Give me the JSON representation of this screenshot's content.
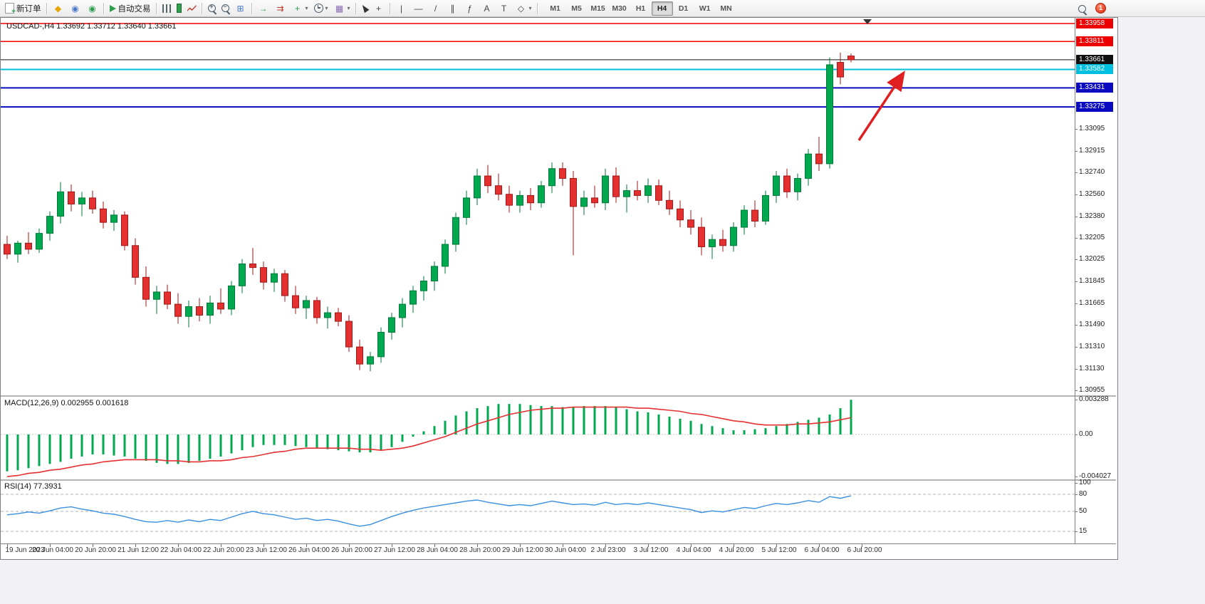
{
  "toolbar": {
    "new_order": "新订单",
    "autotrading": "自动交易",
    "timeframes": [
      "M1",
      "M5",
      "M15",
      "M30",
      "H1",
      "H4",
      "D1",
      "W1",
      "MN"
    ],
    "active_timeframe": "H4",
    "notification_count": "1",
    "groups": [
      {
        "items": [
          {
            "n": "new-order-button",
            "cls": "doc",
            "l": "新订单"
          }
        ]
      },
      {
        "items": [
          {
            "n": "mql5-icon",
            "g": "◆",
            "c": "#e6a400"
          },
          {
            "n": "community-icon",
            "g": "◉",
            "c": "#4a78c8"
          },
          {
            "n": "market-icon",
            "g": "◉",
            "c": "#2f9e4f"
          }
        ]
      },
      {
        "items": [
          {
            "n": "autotrading-button",
            "cls": "play",
            "l": "自动交易"
          }
        ]
      },
      {
        "items": [
          {
            "n": "bar-chart-icon",
            "cls": "bars"
          },
          {
            "n": "candlestick-chart-icon",
            "cls": "candle"
          },
          {
            "n": "line-chart-icon",
            "cls": "linechart"
          }
        ]
      },
      {
        "items": [
          {
            "n": "zoom-in-icon",
            "cls": "magplus"
          },
          {
            "n": "zoom-out-icon",
            "cls": "magminus"
          },
          {
            "n": "tile-windows-icon",
            "g": "⊞",
            "c": "#4a78c8"
          }
        ]
      },
      {
        "items": [
          {
            "n": "auto-scroll-icon",
            "g": "→",
            "c": "#2f9e4f"
          },
          {
            "n": "chart-shift-icon",
            "g": "⇉",
            "c": "#c0392b"
          },
          {
            "n": "indicators-button",
            "g": "+",
            "c": "#2f9e4f",
            "caret": true
          },
          {
            "n": "periods-button",
            "cls": "clock",
            "caret": true
          },
          {
            "n": "templates-button",
            "g": "▦",
            "c": "#8a6ab0",
            "caret": true
          }
        ]
      },
      {
        "items": [
          {
            "n": "cursor-icon",
            "cls": "cursor"
          },
          {
            "n": "crosshair-icon",
            "g": "+",
            "c": "#444"
          }
        ]
      },
      {
        "items": [
          {
            "n": "vertical-line-icon",
            "g": "|",
            "c": "#444"
          },
          {
            "n": "horizontal-line-icon",
            "g": "—",
            "c": "#444"
          },
          {
            "n": "trendline-icon",
            "g": "/",
            "c": "#444"
          },
          {
            "n": "channel-icon",
            "g": "∥",
            "c": "#444"
          },
          {
            "n": "fibonacci-icon",
            "g": "ƒ",
            "c": "#444"
          },
          {
            "n": "text-icon",
            "g": "A",
            "c": "#444"
          },
          {
            "n": "label-icon",
            "g": "T",
            "c": "#444"
          },
          {
            "n": "shapes-button",
            "g": "◇",
            "c": "#444",
            "caret": true
          }
        ]
      }
    ]
  },
  "window": {
    "symbol_title": "USDCAD-,H4 1.33692 1.33712 1.33640 1.33661"
  },
  "price_scale": {
    "levels": [
      {
        "label": "1.33958",
        "price": 1.33958,
        "color": "#ee0000",
        "role": "resistance",
        "width": 1.5
      },
      {
        "label": "1.33811",
        "price": 1.33811,
        "color": "#ee0000",
        "role": "resistance",
        "width": 1.5
      },
      {
        "label": "1.33661",
        "price": 1.33661,
        "color": "#101010",
        "role": "current-price",
        "width": 1
      },
      {
        "label": "1.33582",
        "price": 1.33582,
        "color": "#00c0e0",
        "role": "support",
        "width": 2
      },
      {
        "label": "1.33431",
        "price": 1.33431,
        "color": "#0a0ac0",
        "role": "support",
        "width": 2
      },
      {
        "label": "1.33275",
        "price": 1.33275,
        "color": "#0a0ac0",
        "role": "support",
        "width": 2
      }
    ],
    "ticks": [
      {
        "label": "1.33095",
        "price": 1.33095
      },
      {
        "label": "1.32915",
        "price": 1.32915
      },
      {
        "label": "1.32740",
        "price": 1.3274
      },
      {
        "label": "1.32560",
        "price": 1.3256
      },
      {
        "label": "1.32380",
        "price": 1.3238
      },
      {
        "label": "1.32205",
        "price": 1.32205
      },
      {
        "label": "1.32025",
        "price": 1.32025
      },
      {
        "label": "1.31845",
        "price": 1.31845
      },
      {
        "label": "1.31665",
        "price": 1.31665
      },
      {
        "label": "1.31490",
        "price": 1.3149
      },
      {
        "label": "1.31310",
        "price": 1.3131
      },
      {
        "label": "1.31130",
        "price": 1.3113
      },
      {
        "label": "1.30955",
        "price": 1.30955
      }
    ]
  },
  "chart_data": {
    "type": "candlestick",
    "symbol": "USDCAD",
    "timeframe": "H4",
    "current": {
      "open": "1.33692",
      "high": "1.33712",
      "low": "1.33640",
      "close": "1.33661"
    },
    "up_color": "#00a84f",
    "down_color": "#e53030",
    "ohlc": [
      [
        1.3215,
        1.3222,
        1.3203,
        1.3207
      ],
      [
        1.3207,
        1.3218,
        1.32,
        1.3216
      ],
      [
        1.3216,
        1.3225,
        1.3207,
        1.3211
      ],
      [
        1.3211,
        1.3228,
        1.3208,
        1.3224
      ],
      [
        1.3224,
        1.3242,
        1.3218,
        1.3238
      ],
      [
        1.3238,
        1.3266,
        1.3232,
        1.3258
      ],
      [
        1.3258,
        1.3264,
        1.3242,
        1.3248
      ],
      [
        1.3248,
        1.3258,
        1.3238,
        1.3253
      ],
      [
        1.3253,
        1.3259,
        1.324,
        1.3244
      ],
      [
        1.3244,
        1.325,
        1.3228,
        1.3233
      ],
      [
        1.3233,
        1.3243,
        1.3226,
        1.3239
      ],
      [
        1.3239,
        1.3242,
        1.321,
        1.3214
      ],
      [
        1.3214,
        1.322,
        1.3182,
        1.3188
      ],
      [
        1.3188,
        1.3197,
        1.3164,
        1.317
      ],
      [
        1.317,
        1.3181,
        1.3158,
        1.3176
      ],
      [
        1.3176,
        1.3182,
        1.3162,
        1.3166
      ],
      [
        1.3166,
        1.3175,
        1.315,
        1.3156
      ],
      [
        1.3156,
        1.3169,
        1.3147,
        1.3164
      ],
      [
        1.3164,
        1.3171,
        1.3152,
        1.3157
      ],
      [
        1.3157,
        1.3173,
        1.315,
        1.3167
      ],
      [
        1.3167,
        1.3179,
        1.3158,
        1.3162
      ],
      [
        1.3162,
        1.3185,
        1.3157,
        1.3181
      ],
      [
        1.3181,
        1.3203,
        1.3175,
        1.3199
      ],
      [
        1.3199,
        1.3212,
        1.319,
        1.3196
      ],
      [
        1.3196,
        1.3201,
        1.3178,
        1.3184
      ],
      [
        1.3184,
        1.3195,
        1.3176,
        1.3191
      ],
      [
        1.3191,
        1.3194,
        1.3168,
        1.3173
      ],
      [
        1.3173,
        1.3181,
        1.3158,
        1.3163
      ],
      [
        1.3163,
        1.3173,
        1.3154,
        1.3169
      ],
      [
        1.3169,
        1.3172,
        1.315,
        1.3155
      ],
      [
        1.3155,
        1.3164,
        1.3146,
        1.3159
      ],
      [
        1.3159,
        1.3163,
        1.3148,
        1.3152
      ],
      [
        1.3152,
        1.3157,
        1.3127,
        1.3131
      ],
      [
        1.3131,
        1.3137,
        1.3112,
        1.3117
      ],
      [
        1.3117,
        1.3127,
        1.3111,
        1.3123
      ],
      [
        1.3123,
        1.3147,
        1.3118,
        1.3143
      ],
      [
        1.3143,
        1.3159,
        1.3137,
        1.3155
      ],
      [
        1.3155,
        1.3171,
        1.3147,
        1.3166
      ],
      [
        1.3166,
        1.3181,
        1.3159,
        1.3177
      ],
      [
        1.3177,
        1.3189,
        1.3169,
        1.3185
      ],
      [
        1.3185,
        1.3201,
        1.3177,
        1.3197
      ],
      [
        1.3197,
        1.3219,
        1.3191,
        1.3215
      ],
      [
        1.3215,
        1.3241,
        1.3209,
        1.3237
      ],
      [
        1.3237,
        1.3259,
        1.3231,
        1.3253
      ],
      [
        1.3253,
        1.3277,
        1.3247,
        1.3271
      ],
      [
        1.3271,
        1.328,
        1.3257,
        1.3263
      ],
      [
        1.3263,
        1.3273,
        1.3251,
        1.3256
      ],
      [
        1.3256,
        1.3263,
        1.3241,
        1.3247
      ],
      [
        1.3247,
        1.3259,
        1.3241,
        1.3255
      ],
      [
        1.3255,
        1.3261,
        1.3243,
        1.3249
      ],
      [
        1.3249,
        1.3267,
        1.3245,
        1.3263
      ],
      [
        1.3263,
        1.3282,
        1.3257,
        1.3277
      ],
      [
        1.3277,
        1.3282,
        1.3263,
        1.3269
      ],
      [
        1.3269,
        1.3275,
        1.3206,
        1.3246
      ],
      [
        1.3246,
        1.3259,
        1.3239,
        1.3253
      ],
      [
        1.3253,
        1.3263,
        1.3245,
        1.3249
      ],
      [
        1.3249,
        1.3277,
        1.3243,
        1.3271
      ],
      [
        1.3271,
        1.3278,
        1.3249,
        1.3254
      ],
      [
        1.3254,
        1.3264,
        1.3241,
        1.3259
      ],
      [
        1.3259,
        1.3267,
        1.3251,
        1.3255
      ],
      [
        1.3255,
        1.3269,
        1.3249,
        1.3263
      ],
      [
        1.3263,
        1.3268,
        1.3247,
        1.3251
      ],
      [
        1.3251,
        1.3259,
        1.3239,
        1.3244
      ],
      [
        1.3244,
        1.3251,
        1.3229,
        1.3235
      ],
      [
        1.3235,
        1.3243,
        1.3223,
        1.3229
      ],
      [
        1.3229,
        1.3237,
        1.3206,
        1.3213
      ],
      [
        1.3213,
        1.3223,
        1.3203,
        1.3219
      ],
      [
        1.3219,
        1.3227,
        1.3209,
        1.3214
      ],
      [
        1.3214,
        1.3233,
        1.3209,
        1.3229
      ],
      [
        1.3229,
        1.3247,
        1.3223,
        1.3243
      ],
      [
        1.3243,
        1.3251,
        1.3229,
        1.3234
      ],
      [
        1.3234,
        1.3259,
        1.3231,
        1.3255
      ],
      [
        1.3255,
        1.3275,
        1.3249,
        1.3271
      ],
      [
        1.3271,
        1.3277,
        1.3253,
        1.3258
      ],
      [
        1.3258,
        1.3273,
        1.3251,
        1.3269
      ],
      [
        1.3269,
        1.3293,
        1.3263,
        1.3289
      ],
      [
        1.3289,
        1.3303,
        1.3275,
        1.3281
      ],
      [
        1.3281,
        1.3368,
        1.3277,
        1.3362
      ],
      [
        1.3364,
        1.3372,
        1.3346,
        1.3352
      ],
      [
        1.33692,
        1.33712,
        1.3364,
        1.33661
      ]
    ]
  },
  "macd": {
    "name": "MACD(12,26,9)",
    "value_main": "0.002955",
    "value_signal": "0.001618",
    "scale": {
      "max": "0.003288",
      "zero": "0.00",
      "min": "-0.004027"
    },
    "colors": {
      "histogram": "#00a84f",
      "signal": "#e53030"
    },
    "histogram": [
      -0.0035,
      -0.0034,
      -0.0032,
      -0.003,
      -0.0028,
      -0.0026,
      -0.0023,
      -0.0021,
      -0.0019,
      -0.0019,
      -0.002,
      -0.0021,
      -0.0023,
      -0.0025,
      -0.0027,
      -0.0028,
      -0.0028,
      -0.0027,
      -0.0025,
      -0.0023,
      -0.0021,
      -0.0018,
      -0.0015,
      -0.0012,
      -0.001,
      -0.001,
      -0.001,
      -0.0011,
      -0.0012,
      -0.0013,
      -0.0014,
      -0.0015,
      -0.0016,
      -0.0017,
      -0.0017,
      -0.0015,
      -0.0012,
      -0.0007,
      -0.0002,
      0.0003,
      0.0008,
      0.0013,
      0.0018,
      0.0022,
      0.0025,
      0.0027,
      0.0029,
      0.0029,
      0.0029,
      0.0028,
      0.0027,
      0.0027,
      0.0026,
      0.0026,
      0.0027,
      0.0027,
      0.0027,
      0.0026,
      0.0024,
      0.0022,
      0.0021,
      0.0019,
      0.0017,
      0.0015,
      0.0013,
      0.001,
      0.0008,
      0.0006,
      0.0004,
      0.0004,
      0.0005,
      0.0006,
      0.0008,
      0.001,
      0.0012,
      0.0014,
      0.0016,
      0.0019,
      0.0025,
      0.0033
    ],
    "signal": [
      -0.004,
      -0.0039,
      -0.0037,
      -0.0036,
      -0.0034,
      -0.0033,
      -0.0031,
      -0.0029,
      -0.0028,
      -0.0026,
      -0.0025,
      -0.0024,
      -0.0024,
      -0.0024,
      -0.0024,
      -0.0025,
      -0.0025,
      -0.0026,
      -0.0026,
      -0.0025,
      -0.0025,
      -0.0024,
      -0.0022,
      -0.0021,
      -0.0019,
      -0.0017,
      -0.0016,
      -0.0014,
      -0.0013,
      -0.0013,
      -0.0013,
      -0.0013,
      -0.0013,
      -0.0014,
      -0.0014,
      -0.0015,
      -0.0014,
      -0.0013,
      -0.0011,
      -0.0008,
      -0.0005,
      -0.0002,
      0.0002,
      0.0006,
      0.001,
      0.0013,
      0.0016,
      0.0019,
      0.0021,
      0.0023,
      0.0024,
      0.0025,
      0.0025,
      0.0026,
      0.0026,
      0.0026,
      0.0026,
      0.0026,
      0.0026,
      0.0025,
      0.0025,
      0.0024,
      0.0023,
      0.0022,
      0.002,
      0.0019,
      0.0017,
      0.0015,
      0.0013,
      0.0012,
      0.001,
      0.0009,
      0.0009,
      0.0009,
      0.001,
      0.001,
      0.0011,
      0.0012,
      0.0014,
      0.0016
    ]
  },
  "rsi": {
    "name": "RSI(14)",
    "value": "77.3931",
    "color": "#3b8fe0",
    "scale_labels": [
      {
        "label": "100",
        "value": 100
      },
      {
        "label": "80",
        "value": 80
      },
      {
        "label": "50",
        "value": 50
      },
      {
        "label": "15",
        "value": 15
      }
    ],
    "levels": [
      80,
      50,
      15
    ],
    "values": [
      44,
      46,
      49,
      47,
      51,
      56,
      58,
      54,
      51,
      47,
      45,
      41,
      36,
      32,
      31,
      34,
      31,
      35,
      32,
      36,
      34,
      40,
      46,
      50,
      46,
      44,
      40,
      36,
      38,
      34,
      36,
      33,
      28,
      24,
      27,
      34,
      41,
      47,
      52,
      56,
      59,
      62,
      65,
      68,
      70,
      66,
      63,
      60,
      62,
      60,
      64,
      68,
      65,
      62,
      63,
      61,
      66,
      62,
      64,
      62,
      65,
      62,
      59,
      56,
      53,
      48,
      51,
      49,
      53,
      57,
      55,
      60,
      64,
      62,
      65,
      69,
      66,
      76,
      73,
      77.4
    ]
  },
  "time_axis": {
    "labels": [
      "19 Jun 2023",
      "20 Jun 04:00",
      "20 Jun 20:00",
      "21 Jun 12:00",
      "22 Jun 04:00",
      "22 Jun 20:00",
      "23 Jun 12:00",
      "26 Jun 04:00",
      "26 Jun 20:00",
      "27 Jun 12:00",
      "28 Jun 04:00",
      "28 Jun 20:00",
      "29 Jun 12:00",
      "30 Jun 04:00",
      "2 Jul 23:00",
      "3 Jul 12:00",
      "4 Jul 04:00",
      "4 Jul 20:00",
      "5 Jul 12:00",
      "6 Jul 04:00",
      "6 Jul 20:00"
    ]
  },
  "annotation": {
    "arrow_color": "#e02020"
  }
}
